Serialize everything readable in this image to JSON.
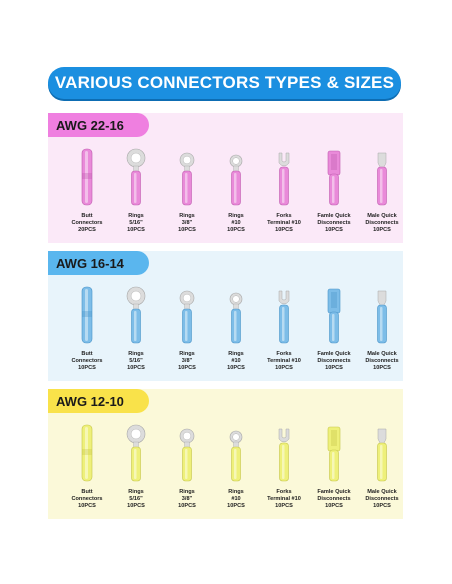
{
  "title": "VARIOUS CONNECTORS TYPES & SIZES",
  "colors": {
    "banner": "#1b8fe0",
    "pink_tag": "#ef7fe0",
    "pink_bg": "#fbe9f8",
    "pink_part": "#e98ad9",
    "blue_tag": "#5ab6ee",
    "blue_bg": "#e8f4fb",
    "blue_part": "#7dbde8",
    "yellow_tag": "#f9e24a",
    "yellow_bg": "#fbf9d9",
    "yellow_part": "#eef07a"
  },
  "sections": [
    {
      "tag": "AWG 22-16",
      "items": [
        {
          "line1": "Butt",
          "line2": "Connectors",
          "line3": "20PCS"
        },
        {
          "line1": "Rings",
          "line2": "5/16\"",
          "line3": "10PCS"
        },
        {
          "line1": "Rings",
          "line2": "3/8\"",
          "line3": "10PCS"
        },
        {
          "line1": "Rings",
          "line2": "#10",
          "line3": "10PCS"
        },
        {
          "line1": "Forks",
          "line2": "Terminal #10",
          "line3": "10PCS"
        },
        {
          "line1": "Famle Quick",
          "line2": "Disconnects",
          "line3": "10PCS"
        },
        {
          "line1": "Male Quick",
          "line2": "Disconnects",
          "line3": "10PCS"
        }
      ]
    },
    {
      "tag": "AWG 16-14",
      "items": [
        {
          "line1": "Butt",
          "line2": "Connectors",
          "line3": "10PCS"
        },
        {
          "line1": "Rings",
          "line2": "5/16\"",
          "line3": "10PCS"
        },
        {
          "line1": "Rings",
          "line2": "3/8\"",
          "line3": "10PCS"
        },
        {
          "line1": "Rings",
          "line2": "#10",
          "line3": "10PCS"
        },
        {
          "line1": "Forks",
          "line2": "Terminal #10",
          "line3": "10PCS"
        },
        {
          "line1": "Famle Quick",
          "line2": "Disconnects",
          "line3": "10PCS"
        },
        {
          "line1": "Male Quick",
          "line2": "Disconnects",
          "line3": "10PCS"
        }
      ]
    },
    {
      "tag": "AWG 12-10",
      "items": [
        {
          "line1": "Butt",
          "line2": "Connectors",
          "line3": "10PCS"
        },
        {
          "line1": "Rings",
          "line2": "5/16\"",
          "line3": "10PCS"
        },
        {
          "line1": "Rings",
          "line2": "3/8\"",
          "line3": "10PCS"
        },
        {
          "line1": "Rings",
          "line2": "#10",
          "line3": "10PCS"
        },
        {
          "line1": "Forks",
          "line2": "Terminal #10",
          "line3": "10PCS"
        },
        {
          "line1": "Famle Quick",
          "line2": "Disconnects",
          "line3": "10PCS"
        },
        {
          "line1": "Male Quick",
          "line2": "Disconnects",
          "line3": "10PCS"
        }
      ]
    }
  ]
}
